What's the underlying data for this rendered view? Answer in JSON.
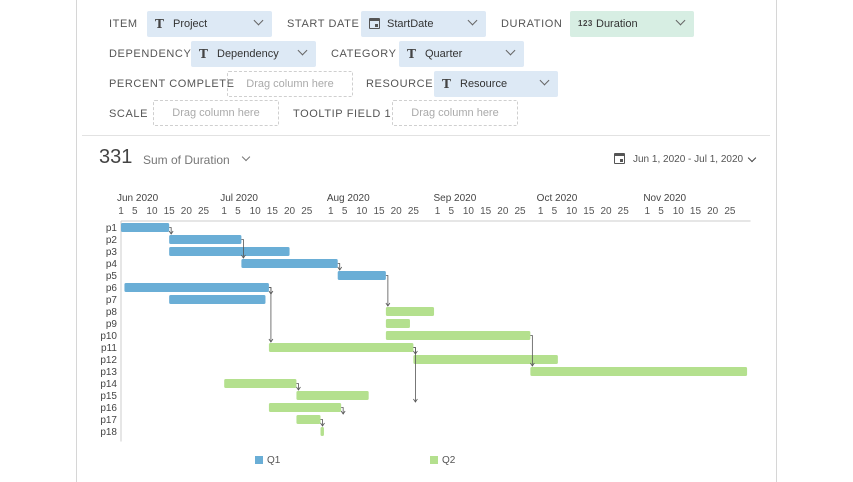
{
  "fields": {
    "item": {
      "label": "ITEM",
      "value": "Project",
      "icon": "text-icon"
    },
    "start_date": {
      "label": "START DATE",
      "value": "StartDate",
      "icon": "calendar-icon"
    },
    "duration": {
      "label": "DURATION",
      "value": "Duration",
      "icon": "number-icon",
      "icon_text": "123"
    },
    "dependency": {
      "label": "DEPENDENCY",
      "value": "Dependency",
      "icon": "text-icon"
    },
    "category": {
      "label": "CATEGORY",
      "value": "Quarter",
      "icon": "text-icon"
    },
    "percent_complete": {
      "label": "PERCENT COMPLETE",
      "placeholder": "Drag column here"
    },
    "resource": {
      "label": "RESOURCE",
      "value": "Resource",
      "icon": "text-icon"
    },
    "scale": {
      "label": "SCALE",
      "placeholder": "Drag column here"
    },
    "tooltip_field": {
      "label": "TOOLTIP FIELD 1",
      "placeholder": "Drag column here"
    }
  },
  "summary": {
    "total": "331",
    "measure": "Sum of Duration",
    "date_range": "Jun 1, 2020 - Jul 1, 2020"
  },
  "colors": {
    "Q1": "#6aaed6",
    "Q2": "#b4e08e",
    "grid": "#cccccc",
    "connector": "#555555"
  },
  "chart_data": {
    "type": "gantt",
    "month_labels": [
      "Jun 2020",
      "Jul 2020",
      "Aug 2020",
      "Sep 2020",
      "Oct 2020",
      "Nov 2020"
    ],
    "day_ticks": [
      "1",
      "5",
      "10",
      "15",
      "20",
      "25"
    ],
    "axis_start": "2020-06-01",
    "axis_end": "2020-11-30",
    "legend": [
      "Q1",
      "Q2"
    ],
    "tasks": [
      {
        "name": "p1",
        "start": "2020-06-01",
        "end": "2020-06-15",
        "category": "Q1"
      },
      {
        "name": "p2",
        "start": "2020-06-15",
        "end": "2020-07-06",
        "category": "Q1",
        "depends_on": "p1"
      },
      {
        "name": "p3",
        "start": "2020-06-15",
        "end": "2020-07-20",
        "category": "Q1"
      },
      {
        "name": "p4",
        "start": "2020-07-06",
        "end": "2020-08-03",
        "category": "Q1",
        "depends_on": "p2"
      },
      {
        "name": "p5",
        "start": "2020-08-03",
        "end": "2020-08-17",
        "category": "Q1",
        "depends_on": "p4"
      },
      {
        "name": "p6",
        "start": "2020-06-02",
        "end": "2020-07-14",
        "category": "Q1"
      },
      {
        "name": "p7",
        "start": "2020-06-15",
        "end": "2020-07-13",
        "category": "Q1",
        "depends_on": "p6"
      },
      {
        "name": "p8",
        "start": "2020-08-17",
        "end": "2020-08-31",
        "category": "Q2",
        "depends_on": "p5"
      },
      {
        "name": "p9",
        "start": "2020-08-17",
        "end": "2020-08-24",
        "category": "Q2"
      },
      {
        "name": "p10",
        "start": "2020-08-17",
        "end": "2020-09-28",
        "category": "Q2"
      },
      {
        "name": "p11",
        "start": "2020-07-14",
        "end": "2020-08-25",
        "category": "Q2",
        "depends_on": "p6"
      },
      {
        "name": "p12",
        "start": "2020-08-25",
        "end": "2020-10-06",
        "category": "Q2",
        "depends_on": "p11"
      },
      {
        "name": "p13",
        "start": "2020-09-28",
        "end": "2020-11-30",
        "category": "Q2",
        "depends_on": "p10"
      },
      {
        "name": "p14",
        "start": "2020-07-01",
        "end": "2020-07-22",
        "category": "Q2"
      },
      {
        "name": "p15",
        "start": "2020-07-22",
        "end": "2020-08-12",
        "category": "Q2",
        "depends_on": "p14"
      },
      {
        "name": "p16",
        "start": "2020-07-14",
        "end": "2020-08-04",
        "category": "Q2",
        "depends_on": "p11"
      },
      {
        "name": "p17",
        "start": "2020-07-22",
        "end": "2020-07-29",
        "category": "Q2",
        "depends_on": "p16"
      },
      {
        "name": "p18",
        "start": "2020-07-29",
        "end": "2020-07-30",
        "category": "Q2",
        "depends_on": "p17"
      }
    ]
  }
}
